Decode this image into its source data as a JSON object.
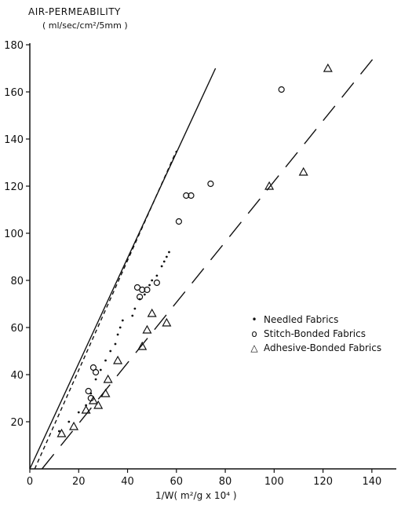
{
  "chart_data": {
    "type": "scatter",
    "ylabel": "AIR-PERMEABILITY",
    "yunit": "( ml/sec/cm²/5mm )",
    "xlabel": "1/W( m²/g x 10⁴ )",
    "xlim": [
      0,
      150
    ],
    "ylim": [
      0,
      180
    ],
    "xticks": [
      0,
      20,
      40,
      60,
      80,
      100,
      120,
      140
    ],
    "yticks": [
      20,
      40,
      60,
      80,
      100,
      120,
      140,
      160,
      180
    ],
    "grid": false,
    "legend_position": "right",
    "series": [
      {
        "name": "Needled Fabrics",
        "marker": "dot",
        "points": [
          [
            12,
            16
          ],
          [
            16,
            20
          ],
          [
            20,
            24
          ],
          [
            23,
            27
          ],
          [
            25,
            32
          ],
          [
            27,
            38
          ],
          [
            29,
            42
          ],
          [
            31,
            46
          ],
          [
            33,
            50
          ],
          [
            35,
            53
          ],
          [
            36,
            57
          ],
          [
            37,
            60
          ],
          [
            38,
            63
          ],
          [
            42,
            65
          ],
          [
            43,
            68
          ],
          [
            45,
            72
          ],
          [
            47,
            74
          ],
          [
            49,
            78
          ],
          [
            50,
            80
          ],
          [
            52,
            82
          ],
          [
            54,
            86
          ],
          [
            55,
            88
          ],
          [
            56,
            90
          ],
          [
            57,
            92
          ]
        ]
      },
      {
        "name": "Stitch-Bonded Fabrics",
        "marker": "circle",
        "points": [
          [
            24,
            33
          ],
          [
            25,
            30
          ],
          [
            26,
            43
          ],
          [
            27,
            41
          ],
          [
            44,
            77
          ],
          [
            45,
            73
          ],
          [
            46,
            76
          ],
          [
            48,
            76
          ],
          [
            52,
            79
          ],
          [
            61,
            105
          ],
          [
            64,
            116
          ],
          [
            66,
            116
          ],
          [
            74,
            121
          ],
          [
            103,
            161
          ]
        ]
      },
      {
        "name": "Adhesive-Bonded Fabrics",
        "marker": "triangle",
        "points": [
          [
            13,
            15
          ],
          [
            18,
            18
          ],
          [
            23,
            25
          ],
          [
            26,
            29
          ],
          [
            28,
            27
          ],
          [
            31,
            32
          ],
          [
            32,
            38
          ],
          [
            36,
            46
          ],
          [
            46,
            52
          ],
          [
            48,
            59
          ],
          [
            50,
            66
          ],
          [
            56,
            62
          ],
          [
            98,
            120
          ],
          [
            112,
            126
          ],
          [
            122,
            170
          ]
        ]
      }
    ],
    "fit_lines": [
      {
        "style": "solid",
        "from": [
          0,
          0
        ],
        "to": [
          76,
          170
        ]
      },
      {
        "style": "short-dash",
        "from": [
          2,
          0
        ],
        "to": [
          60,
          135
        ]
      },
      {
        "style": "long-dash",
        "from": [
          5,
          0
        ],
        "to": [
          142,
          176
        ]
      }
    ]
  }
}
